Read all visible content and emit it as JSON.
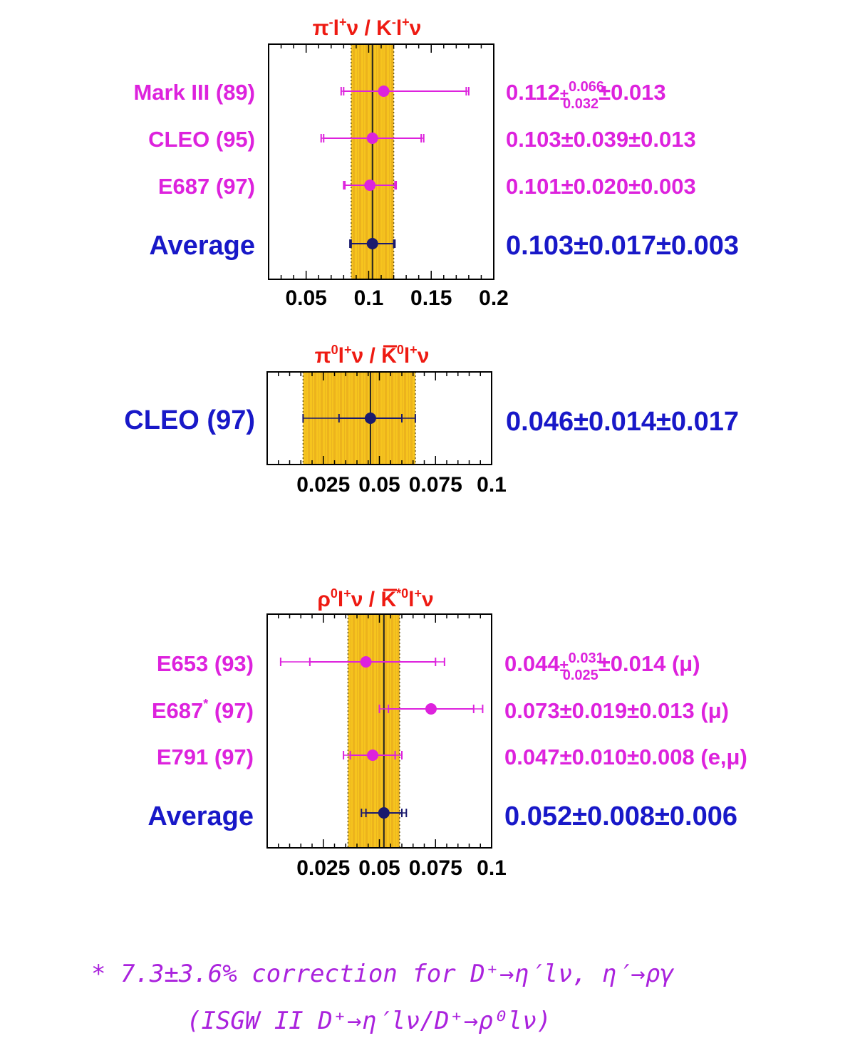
{
  "colors": {
    "band": "#f6c41e",
    "band_stripe": "#e0a21a",
    "magenta": "#dd22dd",
    "blue": "#1818c8",
    "navy": "#1a1a6e",
    "title_red": "#ee1a12",
    "note_purple": "#aa22dd"
  },
  "chart_data": [
    {
      "type": "scatter",
      "title": "π⁻l⁺ν / K⁻l⁺ν",
      "title_parts": {
        "a": "π",
        "a_sup": "-",
        "b": "l",
        "b_sup": "+",
        "c": "ν / K",
        "c_sup": "-",
        "d": "l",
        "d_sup": "+",
        "e": "ν"
      },
      "xlim": [
        0.02,
        0.2
      ],
      "xticks": [
        "0.05",
        "0.1",
        "0.15",
        "0.2"
      ],
      "xtick_values": [
        0.05,
        0.1,
        0.15,
        0.2
      ],
      "band": {
        "center": 0.103,
        "low": 0.086,
        "high": 0.12
      },
      "series": [
        {
          "name": "Mark III (89)",
          "y": 0.112,
          "stat_minus": 0.032,
          "stat_plus": 0.066,
          "tot_low": 0.078,
          "tot_high": 0.18,
          "label": "0.112",
          "label_sup": "0.066",
          "label_sub": "0.032",
          "label_tail": "±0.013",
          "color": "magenta"
        },
        {
          "name": "CLEO (95)",
          "y": 0.103,
          "stat_minus": 0.039,
          "stat_plus": 0.039,
          "tot_low": 0.062,
          "tot_high": 0.144,
          "label": "0.103±0.039±0.013",
          "color": "magenta"
        },
        {
          "name": "E687 (97)",
          "y": 0.101,
          "stat_minus": 0.02,
          "stat_plus": 0.02,
          "tot_low": 0.08,
          "tot_high": 0.122,
          "label": "0.101±0.020±0.003",
          "color": "magenta"
        },
        {
          "name": "Average",
          "y": 0.103,
          "stat_minus": 0.017,
          "stat_plus": 0.017,
          "tot_low": 0.085,
          "tot_high": 0.121,
          "label": "0.103±0.017±0.003",
          "color": "blue"
        }
      ]
    },
    {
      "type": "scatter",
      "title": "π⁰l⁺ν / K̄⁰l⁺ν",
      "title_parts": {
        "a": "π",
        "a_sup": "0",
        "b": "l",
        "b_sup": "+",
        "c": "ν / K",
        "c_sup": "0",
        "d": "l",
        "d_sup": "+",
        "e": "ν"
      },
      "xlim": [
        0.0,
        0.1
      ],
      "xticks": [
        "0.025",
        "0.05",
        "0.075",
        "0.1"
      ],
      "xtick_values": [
        0.025,
        0.05,
        0.075,
        0.1
      ],
      "band": {
        "center": 0.046,
        "low": 0.016,
        "high": 0.066
      },
      "series": [
        {
          "name": "CLEO (97)",
          "y": 0.046,
          "stat_minus": 0.014,
          "stat_plus": 0.014,
          "tot_low": 0.016,
          "tot_high": 0.066,
          "label": "0.046±0.014±0.017",
          "color": "blue"
        }
      ]
    },
    {
      "type": "scatter",
      "title": "ρ⁰l⁺ν / K̄*⁰l⁺ν",
      "title_parts": {
        "a": "ρ",
        "a_sup": "0",
        "b": "l",
        "b_sup": "+",
        "c": "ν / K",
        "c_sup": "*0",
        "d": "l",
        "d_sup": "+",
        "e": "ν"
      },
      "xlim": [
        0.0,
        0.1
      ],
      "xticks": [
        "0.025",
        "0.05",
        "0.075",
        "0.1"
      ],
      "xtick_values": [
        0.025,
        0.05,
        0.075,
        0.1
      ],
      "band": {
        "center": 0.052,
        "low": 0.036,
        "high": 0.059
      },
      "series": [
        {
          "name": "E653 (93)",
          "name_sup": "",
          "y": 0.044,
          "stat_minus": 0.025,
          "stat_plus": 0.031,
          "tot_low": 0.006,
          "tot_high": 0.079,
          "label": "0.044",
          "label_sup": "0.031",
          "label_sub": "0.025",
          "label_tail": "±0.014 (μ)",
          "color": "magenta"
        },
        {
          "name": "E687",
          "name_sup": "*",
          "name_tail": " (97)",
          "y": 0.073,
          "stat_minus": 0.019,
          "stat_plus": 0.019,
          "tot_low": 0.05,
          "tot_high": 0.096,
          "label": "0.073±0.019±0.013 (μ)",
          "color": "magenta"
        },
        {
          "name": "E791 (97)",
          "y": 0.047,
          "stat_minus": 0.01,
          "stat_plus": 0.01,
          "tot_low": 0.034,
          "tot_high": 0.06,
          "label": "0.047±0.010±0.008 (e,μ)",
          "color": "magenta"
        },
        {
          "name": "Average",
          "y": 0.052,
          "stat_minus": 0.008,
          "stat_plus": 0.008,
          "tot_low": 0.042,
          "tot_high": 0.062,
          "label": "0.052±0.008±0.006",
          "color": "blue"
        }
      ]
    }
  ],
  "note": {
    "line1": "* 7.3±3.6% correction for D⁺→η′lν, η′→ργ",
    "line2": "(ISGW II   D⁺→η′lν/D⁺→ρ⁰lν)"
  }
}
